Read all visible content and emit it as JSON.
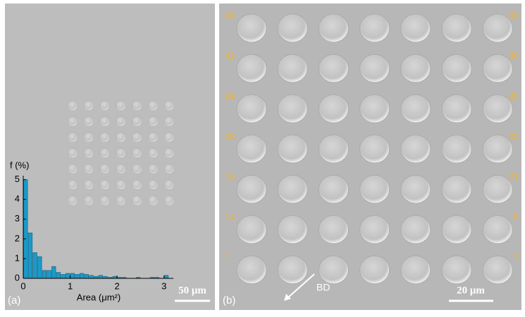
{
  "chart_data": {
    "type": "histogram",
    "xlabel": "Area (μm²)",
    "ylabel": "f (%)",
    "bins": [
      0,
      0.1,
      0.2,
      0.3,
      0.4,
      0.5,
      0.6,
      0.7,
      0.8,
      0.9,
      1.0,
      1.1,
      1.2,
      1.3,
      1.4,
      1.5,
      1.6,
      1.7,
      1.8,
      1.9,
      2.0,
      2.1,
      2.2,
      2.3,
      2.4,
      2.5,
      2.6,
      2.7,
      2.8,
      2.9,
      3.0,
      3.1
    ],
    "values": [
      5.0,
      2.3,
      1.3,
      1.1,
      0.4,
      0.4,
      0.6,
      0.3,
      0.2,
      0.25,
      0.25,
      0.2,
      0.25,
      0.2,
      0.15,
      0.1,
      0.15,
      0.1,
      0.05,
      0.1,
      0.05,
      0.05,
      0,
      0,
      0.05,
      0,
      0,
      0.05,
      0.05,
      0,
      0.15
    ],
    "color": "#1a9ac9",
    "xlim": [
      0,
      3.2
    ],
    "ylim": [
      0,
      5.2
    ],
    "xticks": [
      0,
      1,
      2,
      3
    ],
    "yticks": [
      0,
      1,
      2,
      3,
      4,
      5
    ]
  },
  "panel_a": {
    "label": "(a)",
    "scale_bar": "50 μm"
  },
  "panel_b": {
    "label": "(b)",
    "scale_bar": "20 μm",
    "direction": "BD",
    "row_labels_left": [
      "43",
      "42",
      "29",
      "28",
      "15",
      "14",
      "1"
    ],
    "row_labels_right": [
      "49",
      "36",
      "35",
      "22",
      "21",
      "8",
      "7"
    ]
  }
}
